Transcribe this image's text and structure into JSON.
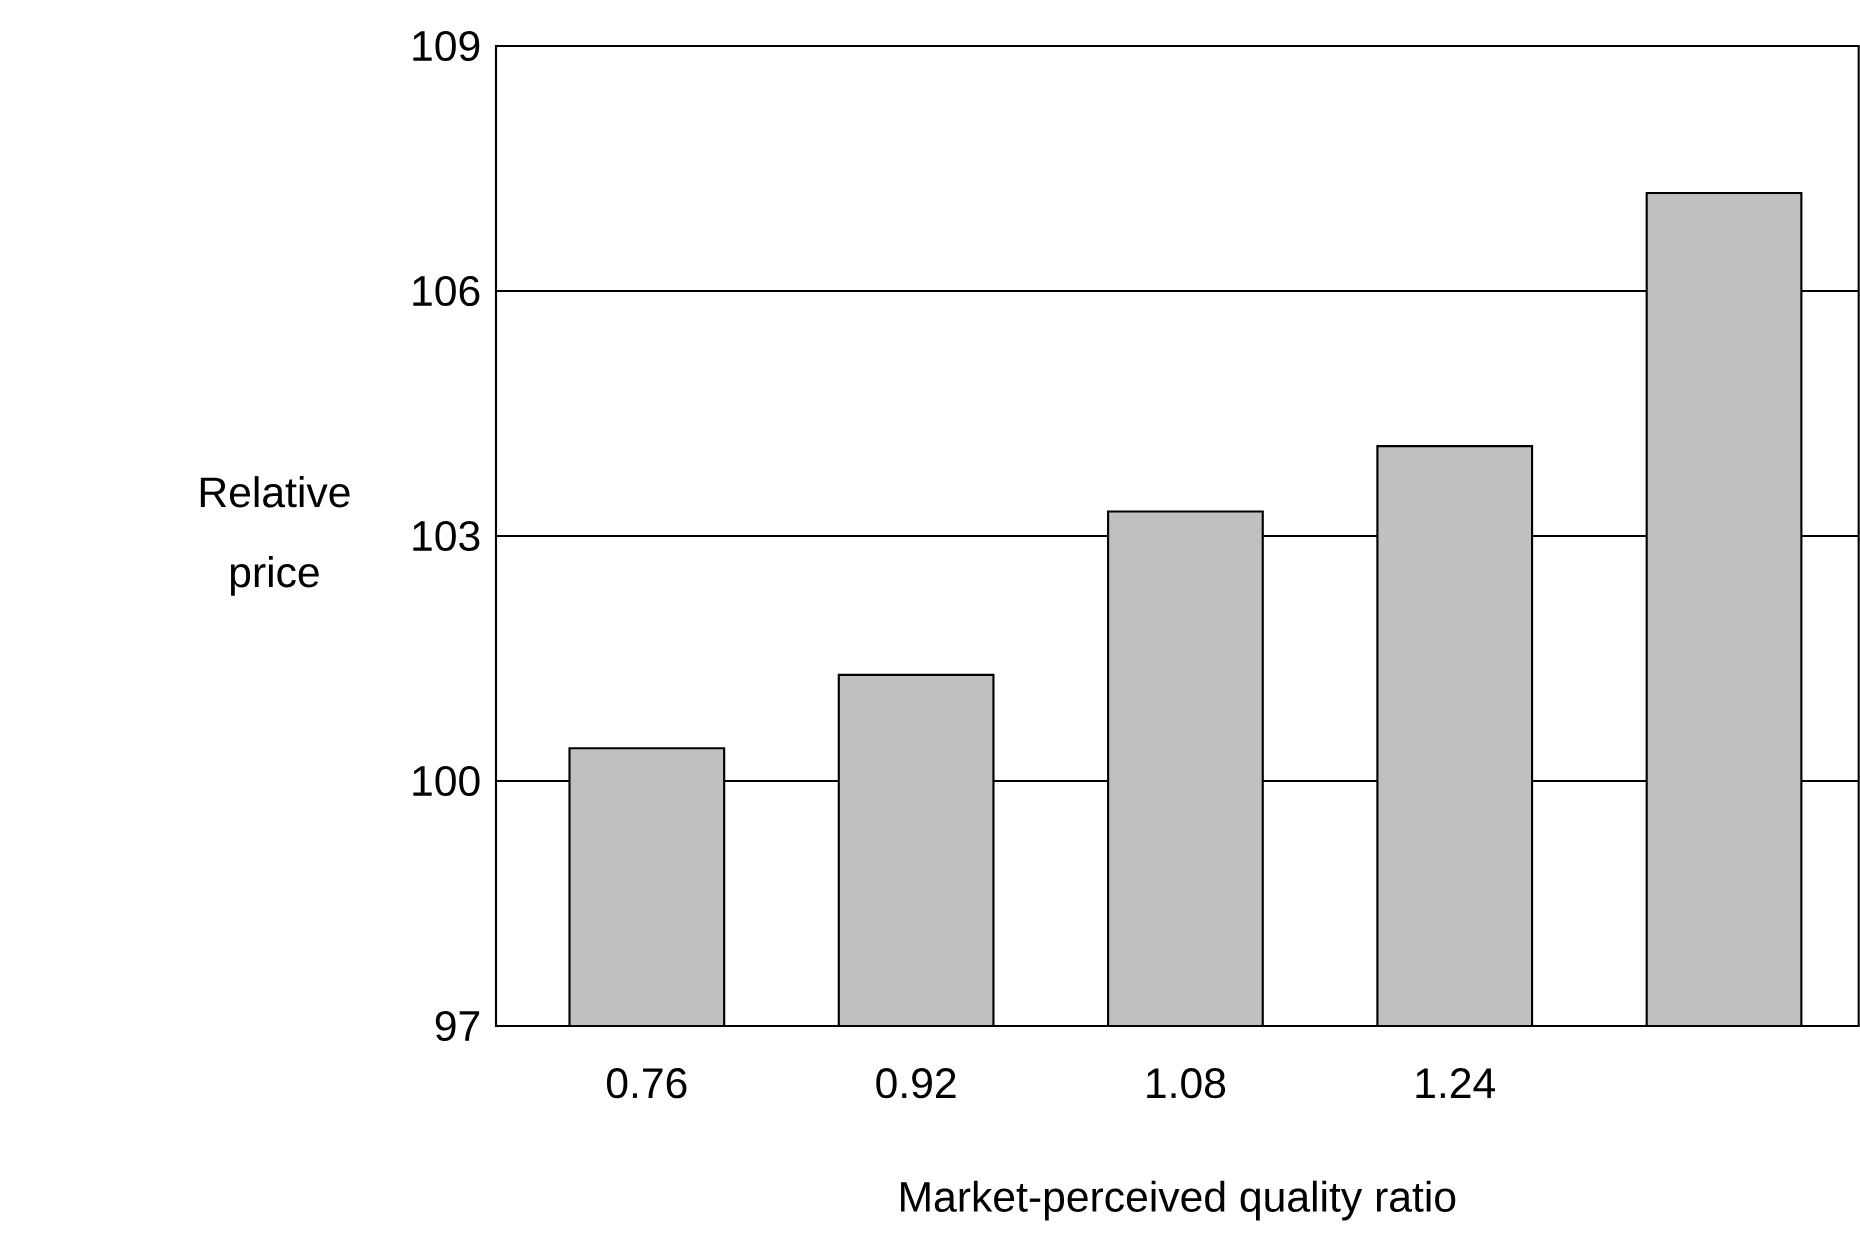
{
  "chart_data": {
    "type": "bar",
    "xlabel": "Market-perceived quality ratio",
    "ylabel": "Relative price",
    "categories": [
      "0.76",
      "0.92",
      "1.08",
      "1.24",
      null
    ],
    "values": [
      100.4,
      101.3,
      103.3,
      104.1,
      107.2
    ],
    "color": "#c0c0c0",
    "ylim": [
      97,
      109
    ],
    "yticks": [
      97,
      100,
      103,
      106,
      109
    ],
    "grid": "y"
  }
}
